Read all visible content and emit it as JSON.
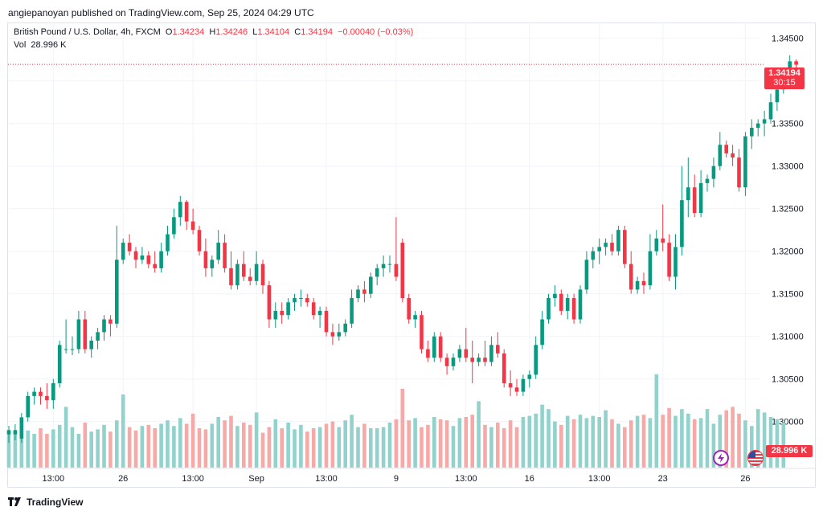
{
  "header": {
    "publisher": "angiepanoyan published on TradingView.com, Sep 25, 2024 04:29 UTC"
  },
  "legend": {
    "symbol": "British Pound / U.S. Dollar, 4h, FXCM",
    "o_label": "O",
    "o_value": "1.34234",
    "h_label": "H",
    "h_value": "1.34246",
    "l_label": "L",
    "l_value": "1.34104",
    "c_label": "C",
    "c_value": "1.34194",
    "change": "−0.00040 (−0.03%)",
    "vol_label": "Vol",
    "vol_value": "28.996 K"
  },
  "price_tag": {
    "price": "1.34194",
    "countdown": "30:15"
  },
  "volume_tag": "28.996 K",
  "footer": {
    "brand": "TradingView"
  },
  "colors": {
    "up": "#089981",
    "down": "#f23645",
    "up_vol": "#92d2cc",
    "down_vol": "#f7a9a7",
    "grid": "#f0f3fa"
  },
  "chart_data": {
    "type": "candlestick",
    "y_axis": {
      "ylim": [
        1.2945,
        1.3462
      ],
      "ticks": [
        "1.30000",
        "1.30500",
        "1.31000",
        "1.31500",
        "1.32000",
        "1.32500",
        "1.33000",
        "1.33500",
        "1.34000",
        "1.34500"
      ]
    },
    "x_axis": {
      "tick_labels": [
        {
          "label": "13:00",
          "i": 7
        },
        {
          "label": "26",
          "i": 18
        },
        {
          "label": "13:00",
          "i": 29
        },
        {
          "label": "Sep",
          "i": 39
        },
        {
          "label": "13:00",
          "i": 50
        },
        {
          "label": "9",
          "i": 61
        },
        {
          "label": "13:00",
          "i": 72
        },
        {
          "label": "16",
          "i": 82
        },
        {
          "label": "13:00",
          "i": 93
        },
        {
          "label": "23",
          "i": 103
        },
        {
          "label": "26",
          "i": 116
        }
      ]
    },
    "last_price": 1.34194,
    "candles": [
      {
        "o": 1.2985,
        "h": 1.2995,
        "l": 1.2975,
        "c": 1.299
      },
      {
        "o": 1.2985,
        "h": 1.2997,
        "l": 1.2978,
        "c": 1.299
      },
      {
        "o": 1.298,
        "h": 1.301,
        "l": 1.2975,
        "c": 1.3005
      },
      {
        "o": 1.3005,
        "h": 1.3035,
        "l": 1.3,
        "c": 1.303
      },
      {
        "o": 1.303,
        "h": 1.304,
        "l": 1.302,
        "c": 1.3035
      },
      {
        "o": 1.3035,
        "h": 1.304,
        "l": 1.302,
        "c": 1.303
      },
      {
        "o": 1.303,
        "h": 1.3045,
        "l": 1.3015,
        "c": 1.3025
      },
      {
        "o": 1.3025,
        "h": 1.305,
        "l": 1.3015,
        "c": 1.3045
      },
      {
        "o": 1.3045,
        "h": 1.3095,
        "l": 1.304,
        "c": 1.309
      },
      {
        "o": 1.3085,
        "h": 1.312,
        "l": 1.308,
        "c": 1.3085
      },
      {
        "o": 1.3085,
        "h": 1.31,
        "l": 1.3078,
        "c": 1.3085
      },
      {
        "o": 1.3085,
        "h": 1.313,
        "l": 1.308,
        "c": 1.312
      },
      {
        "o": 1.312,
        "h": 1.313,
        "l": 1.308,
        "c": 1.3085
      },
      {
        "o": 1.3085,
        "h": 1.31,
        "l": 1.3075,
        "c": 1.3095
      },
      {
        "o": 1.3095,
        "h": 1.311,
        "l": 1.3085,
        "c": 1.3105
      },
      {
        "o": 1.3105,
        "h": 1.3125,
        "l": 1.3095,
        "c": 1.312
      },
      {
        "o": 1.312,
        "h": 1.3125,
        "l": 1.31,
        "c": 1.3115
      },
      {
        "o": 1.3115,
        "h": 1.323,
        "l": 1.311,
        "c": 1.319
      },
      {
        "o": 1.319,
        "h": 1.3215,
        "l": 1.3185,
        "c": 1.321
      },
      {
        "o": 1.321,
        "h": 1.322,
        "l": 1.3195,
        "c": 1.32
      },
      {
        "o": 1.32,
        "h": 1.3205,
        "l": 1.318,
        "c": 1.319
      },
      {
        "o": 1.319,
        "h": 1.3205,
        "l": 1.3185,
        "c": 1.3195
      },
      {
        "o": 1.3195,
        "h": 1.32,
        "l": 1.318,
        "c": 1.3185
      },
      {
        "o": 1.3185,
        "h": 1.32,
        "l": 1.3175,
        "c": 1.318
      },
      {
        "o": 1.318,
        "h": 1.321,
        "l": 1.3175,
        "c": 1.32
      },
      {
        "o": 1.32,
        "h": 1.323,
        "l": 1.3195,
        "c": 1.322
      },
      {
        "o": 1.322,
        "h": 1.325,
        "l": 1.3215,
        "c": 1.324
      },
      {
        "o": 1.324,
        "h": 1.3265,
        "l": 1.323,
        "c": 1.3258
      },
      {
        "o": 1.3258,
        "h": 1.326,
        "l": 1.3225,
        "c": 1.3235
      },
      {
        "o": 1.3235,
        "h": 1.325,
        "l": 1.322,
        "c": 1.3225
      },
      {
        "o": 1.3225,
        "h": 1.323,
        "l": 1.3195,
        "c": 1.32
      },
      {
        "o": 1.32,
        "h": 1.3215,
        "l": 1.317,
        "c": 1.318
      },
      {
        "o": 1.318,
        "h": 1.3195,
        "l": 1.317,
        "c": 1.319
      },
      {
        "o": 1.319,
        "h": 1.3225,
        "l": 1.3185,
        "c": 1.321
      },
      {
        "o": 1.321,
        "h": 1.322,
        "l": 1.3175,
        "c": 1.318
      },
      {
        "o": 1.318,
        "h": 1.32,
        "l": 1.3155,
        "c": 1.316
      },
      {
        "o": 1.316,
        "h": 1.319,
        "l": 1.3155,
        "c": 1.3185
      },
      {
        "o": 1.3185,
        "h": 1.32,
        "l": 1.3165,
        "c": 1.317
      },
      {
        "o": 1.317,
        "h": 1.318,
        "l": 1.316,
        "c": 1.3165
      },
      {
        "o": 1.3165,
        "h": 1.32,
        "l": 1.316,
        "c": 1.3185
      },
      {
        "o": 1.3185,
        "h": 1.319,
        "l": 1.315,
        "c": 1.316
      },
      {
        "o": 1.316,
        "h": 1.3165,
        "l": 1.311,
        "c": 1.312
      },
      {
        "o": 1.312,
        "h": 1.314,
        "l": 1.311,
        "c": 1.313
      },
      {
        "o": 1.313,
        "h": 1.314,
        "l": 1.3115,
        "c": 1.3125
      },
      {
        "o": 1.3125,
        "h": 1.3145,
        "l": 1.312,
        "c": 1.314
      },
      {
        "o": 1.314,
        "h": 1.315,
        "l": 1.313,
        "c": 1.3145
      },
      {
        "o": 1.3145,
        "h": 1.3155,
        "l": 1.3135,
        "c": 1.3145
      },
      {
        "o": 1.3145,
        "h": 1.315,
        "l": 1.3135,
        "c": 1.314
      },
      {
        "o": 1.314,
        "h": 1.3145,
        "l": 1.312,
        "c": 1.3125
      },
      {
        "o": 1.3125,
        "h": 1.3135,
        "l": 1.311,
        "c": 1.313
      },
      {
        "o": 1.313,
        "h": 1.3135,
        "l": 1.31,
        "c": 1.3105
      },
      {
        "o": 1.3105,
        "h": 1.3115,
        "l": 1.309,
        "c": 1.31
      },
      {
        "o": 1.31,
        "h": 1.3115,
        "l": 1.3095,
        "c": 1.3105
      },
      {
        "o": 1.3105,
        "h": 1.312,
        "l": 1.31,
        "c": 1.3115
      },
      {
        "o": 1.3115,
        "h": 1.3155,
        "l": 1.311,
        "c": 1.3145
      },
      {
        "o": 1.3145,
        "h": 1.316,
        "l": 1.314,
        "c": 1.3155
      },
      {
        "o": 1.3155,
        "h": 1.3165,
        "l": 1.314,
        "c": 1.315
      },
      {
        "o": 1.315,
        "h": 1.3175,
        "l": 1.3145,
        "c": 1.317
      },
      {
        "o": 1.317,
        "h": 1.3185,
        "l": 1.316,
        "c": 1.318
      },
      {
        "o": 1.318,
        "h": 1.3195,
        "l": 1.317,
        "c": 1.3185
      },
      {
        "o": 1.3185,
        "h": 1.3195,
        "l": 1.3175,
        "c": 1.3185
      },
      {
        "o": 1.3185,
        "h": 1.324,
        "l": 1.3165,
        "c": 1.317
      },
      {
        "o": 1.321,
        "h": 1.3215,
        "l": 1.314,
        "c": 1.3145
      },
      {
        "o": 1.3145,
        "h": 1.315,
        "l": 1.3115,
        "c": 1.312
      },
      {
        "o": 1.312,
        "h": 1.313,
        "l": 1.311,
        "c": 1.3125
      },
      {
        "o": 1.3125,
        "h": 1.313,
        "l": 1.308,
        "c": 1.3085
      },
      {
        "o": 1.3085,
        "h": 1.3095,
        "l": 1.307,
        "c": 1.3075
      },
      {
        "o": 1.3075,
        "h": 1.3105,
        "l": 1.307,
        "c": 1.31
      },
      {
        "o": 1.31,
        "h": 1.3105,
        "l": 1.307,
        "c": 1.3075
      },
      {
        "o": 1.3075,
        "h": 1.308,
        "l": 1.3055,
        "c": 1.3065
      },
      {
        "o": 1.3065,
        "h": 1.308,
        "l": 1.306,
        "c": 1.3075
      },
      {
        "o": 1.3075,
        "h": 1.309,
        "l": 1.307,
        "c": 1.3085
      },
      {
        "o": 1.3085,
        "h": 1.311,
        "l": 1.307,
        "c": 1.3075
      },
      {
        "o": 1.3075,
        "h": 1.3095,
        "l": 1.3045,
        "c": 1.307
      },
      {
        "o": 1.307,
        "h": 1.308,
        "l": 1.3065,
        "c": 1.3075
      },
      {
        "o": 1.3075,
        "h": 1.3095,
        "l": 1.3065,
        "c": 1.307
      },
      {
        "o": 1.307,
        "h": 1.31,
        "l": 1.3065,
        "c": 1.309
      },
      {
        "o": 1.309,
        "h": 1.3105,
        "l": 1.3075,
        "c": 1.308
      },
      {
        "o": 1.308,
        "h": 1.3085,
        "l": 1.304,
        "c": 1.3045
      },
      {
        "o": 1.3045,
        "h": 1.306,
        "l": 1.303,
        "c": 1.304
      },
      {
        "o": 1.304,
        "h": 1.305,
        "l": 1.303,
        "c": 1.3035
      },
      {
        "o": 1.3035,
        "h": 1.3055,
        "l": 1.303,
        "c": 1.305
      },
      {
        "o": 1.305,
        "h": 1.306,
        "l": 1.304,
        "c": 1.3055
      },
      {
        "o": 1.3055,
        "h": 1.31,
        "l": 1.305,
        "c": 1.309
      },
      {
        "o": 1.309,
        "h": 1.313,
        "l": 1.3085,
        "c": 1.312
      },
      {
        "o": 1.312,
        "h": 1.315,
        "l": 1.3115,
        "c": 1.3145
      },
      {
        "o": 1.3145,
        "h": 1.316,
        "l": 1.3135,
        "c": 1.315
      },
      {
        "o": 1.315,
        "h": 1.3155,
        "l": 1.3125,
        "c": 1.313
      },
      {
        "o": 1.313,
        "h": 1.315,
        "l": 1.312,
        "c": 1.3145
      },
      {
        "o": 1.3145,
        "h": 1.315,
        "l": 1.3115,
        "c": 1.312
      },
      {
        "o": 1.312,
        "h": 1.316,
        "l": 1.3115,
        "c": 1.3155
      },
      {
        "o": 1.3155,
        "h": 1.32,
        "l": 1.315,
        "c": 1.319
      },
      {
        "o": 1.319,
        "h": 1.3205,
        "l": 1.318,
        "c": 1.32
      },
      {
        "o": 1.32,
        "h": 1.3215,
        "l": 1.3185,
        "c": 1.3205
      },
      {
        "o": 1.3205,
        "h": 1.3215,
        "l": 1.3195,
        "c": 1.321
      },
      {
        "o": 1.321,
        "h": 1.322,
        "l": 1.3195,
        "c": 1.32
      },
      {
        "o": 1.32,
        "h": 1.323,
        "l": 1.3195,
        "c": 1.3225
      },
      {
        "o": 1.3225,
        "h": 1.323,
        "l": 1.318,
        "c": 1.3185
      },
      {
        "o": 1.3185,
        "h": 1.32,
        "l": 1.315,
        "c": 1.3155
      },
      {
        "o": 1.3155,
        "h": 1.317,
        "l": 1.315,
        "c": 1.3165
      },
      {
        "o": 1.3165,
        "h": 1.3175,
        "l": 1.315,
        "c": 1.316
      },
      {
        "o": 1.316,
        "h": 1.322,
        "l": 1.3155,
        "c": 1.32
      },
      {
        "o": 1.32,
        "h": 1.3225,
        "l": 1.3195,
        "c": 1.3215
      },
      {
        "o": 1.3215,
        "h": 1.3255,
        "l": 1.32,
        "c": 1.321
      },
      {
        "o": 1.321,
        "h": 1.322,
        "l": 1.3165,
        "c": 1.317
      },
      {
        "o": 1.317,
        "h": 1.322,
        "l": 1.3155,
        "c": 1.3205
      },
      {
        "o": 1.3205,
        "h": 1.33,
        "l": 1.3195,
        "c": 1.326
      },
      {
        "o": 1.326,
        "h": 1.331,
        "l": 1.324,
        "c": 1.3275
      },
      {
        "o": 1.3275,
        "h": 1.329,
        "l": 1.324,
        "c": 1.3245
      },
      {
        "o": 1.3245,
        "h": 1.3295,
        "l": 1.324,
        "c": 1.328
      },
      {
        "o": 1.328,
        "h": 1.329,
        "l": 1.327,
        "c": 1.3285
      },
      {
        "o": 1.3285,
        "h": 1.331,
        "l": 1.3275,
        "c": 1.33
      },
      {
        "o": 1.33,
        "h": 1.334,
        "l": 1.3295,
        "c": 1.3325
      },
      {
        "o": 1.3325,
        "h": 1.333,
        "l": 1.331,
        "c": 1.3315
      },
      {
        "o": 1.3315,
        "h": 1.3325,
        "l": 1.33,
        "c": 1.331
      },
      {
        "o": 1.331,
        "h": 1.332,
        "l": 1.327,
        "c": 1.3275
      },
      {
        "o": 1.3275,
        "h": 1.334,
        "l": 1.3265,
        "c": 1.3335
      },
      {
        "o": 1.3335,
        "h": 1.3355,
        "l": 1.332,
        "c": 1.3345
      },
      {
        "o": 1.3345,
        "h": 1.3355,
        "l": 1.3335,
        "c": 1.335
      },
      {
        "o": 1.335,
        "h": 1.3365,
        "l": 1.3335,
        "c": 1.3355
      },
      {
        "o": 1.3355,
        "h": 1.3385,
        "l": 1.335,
        "c": 1.3375
      },
      {
        "o": 1.3375,
        "h": 1.3395,
        "l": 1.3365,
        "c": 1.339
      },
      {
        "o": 1.339,
        "h": 1.3415,
        "l": 1.3385,
        "c": 1.341
      },
      {
        "o": 1.341,
        "h": 1.343,
        "l": 1.34,
        "c": 1.3423
      },
      {
        "o": 1.3423,
        "h": 1.3425,
        "l": 1.341,
        "c": 1.3419
      }
    ],
    "volume_scale_max": 1000,
    "volumes": [
      310,
      300,
      390,
      330,
      300,
      350,
      300,
      340,
      380,
      540,
      360,
      300,
      400,
      320,
      340,
      380,
      320,
      420,
      650,
      360,
      330,
      370,
      380,
      350,
      390,
      420,
      370,
      440,
      390,
      480,
      350,
      340,
      390,
      450,
      420,
      460,
      370,
      400,
      380,
      490,
      310,
      360,
      430,
      350,
      400,
      340,
      380,
      320,
      350,
      360,
      390,
      410,
      360,
      420,
      470,
      360,
      390,
      350,
      350,
      360,
      400,
      430,
      700,
      420,
      440,
      360,
      380,
      450,
      430,
      420,
      370,
      440,
      450,
      470,
      590,
      380,
      360,
      400,
      350,
      420,
      360,
      450,
      460,
      480,
      560,
      520,
      410,
      380,
      460,
      430,
      470,
      440,
      460,
      450,
      510,
      430,
      390,
      360,
      420,
      460,
      470,
      440,
      830,
      470,
      530,
      460,
      520,
      480,
      430,
      440,
      520,
      390,
      470,
      510,
      540,
      480,
      420,
      370,
      520,
      490,
      450,
      430,
      400
    ]
  }
}
